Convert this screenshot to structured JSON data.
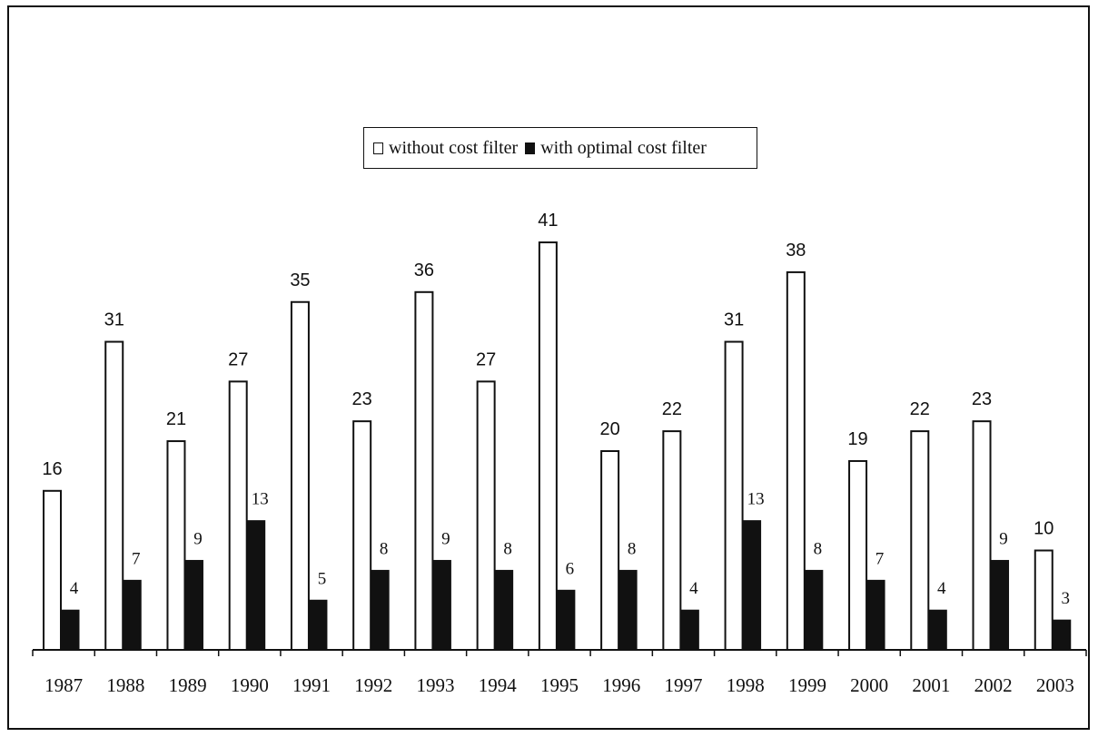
{
  "colors": {
    "series_without": "#ffffff",
    "series_with": "#111111",
    "stroke": "#111111"
  },
  "legend": {
    "items": [
      {
        "label": "without cost filter",
        "swatch": "outline"
      },
      {
        "label": "with optimal cost filter",
        "swatch": "filled"
      }
    ],
    "placement": "top-center"
  },
  "chart_data": {
    "type": "bar",
    "title": "",
    "xlabel": "",
    "ylabel": "",
    "categories": [
      "1987",
      "1988",
      "1989",
      "1990",
      "1991",
      "1992",
      "1993",
      "1994",
      "1995",
      "1996",
      "1997",
      "1998",
      "1999",
      "2000",
      "2001",
      "2002",
      "2003"
    ],
    "series": [
      {
        "name": "without cost filter",
        "values": [
          16,
          31,
          21,
          27,
          35,
          23,
          36,
          27,
          41,
          20,
          22,
          31,
          38,
          19,
          22,
          23,
          10
        ]
      },
      {
        "name": "with optimal cost filter",
        "values": [
          4,
          7,
          9,
          13,
          5,
          8,
          9,
          8,
          6,
          8,
          4,
          13,
          8,
          7,
          4,
          9,
          3
        ]
      }
    ],
    "ylim": [
      0,
      41
    ],
    "grid": false,
    "data_labels": true
  }
}
